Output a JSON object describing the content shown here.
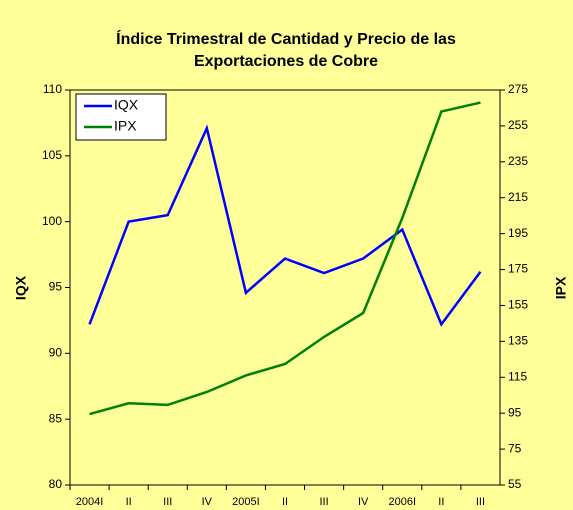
{
  "chart_data": {
    "type": "line",
    "title": [
      "Índice Trimestral de Cantidad y Precio de las",
      "Exportaciones de Cobre"
    ],
    "categories": [
      "2004I",
      "II",
      "III",
      "IV",
      "2005I",
      "II",
      "III",
      "IV",
      "2006I",
      "II",
      "III"
    ],
    "series": [
      {
        "name": "IQX",
        "color": "#0000ff",
        "values": [
          92.2,
          100.0,
          100.5,
          107.1,
          94.6,
          97.2,
          96.1,
          97.2,
          99.4,
          92.2,
          96.2
        ]
      },
      {
        "name": "IPX",
        "color": "#008000",
        "axis": "y2",
        "values": [
          94.5,
          100.5,
          99.6,
          106.8,
          116,
          122.4,
          137.5,
          150.8,
          203.7,
          263,
          268
        ]
      }
    ],
    "ylabel": "IQX",
    "y2label": "IPX",
    "ylim": [
      80,
      110
    ],
    "yticks": [
      80,
      85,
      90,
      95,
      100,
      105,
      110
    ],
    "y2lim": [
      55,
      275
    ],
    "y2ticks": [
      55,
      75,
      95,
      115,
      135,
      155,
      175,
      195,
      215,
      235,
      255,
      275
    ],
    "legend": "top-left"
  }
}
